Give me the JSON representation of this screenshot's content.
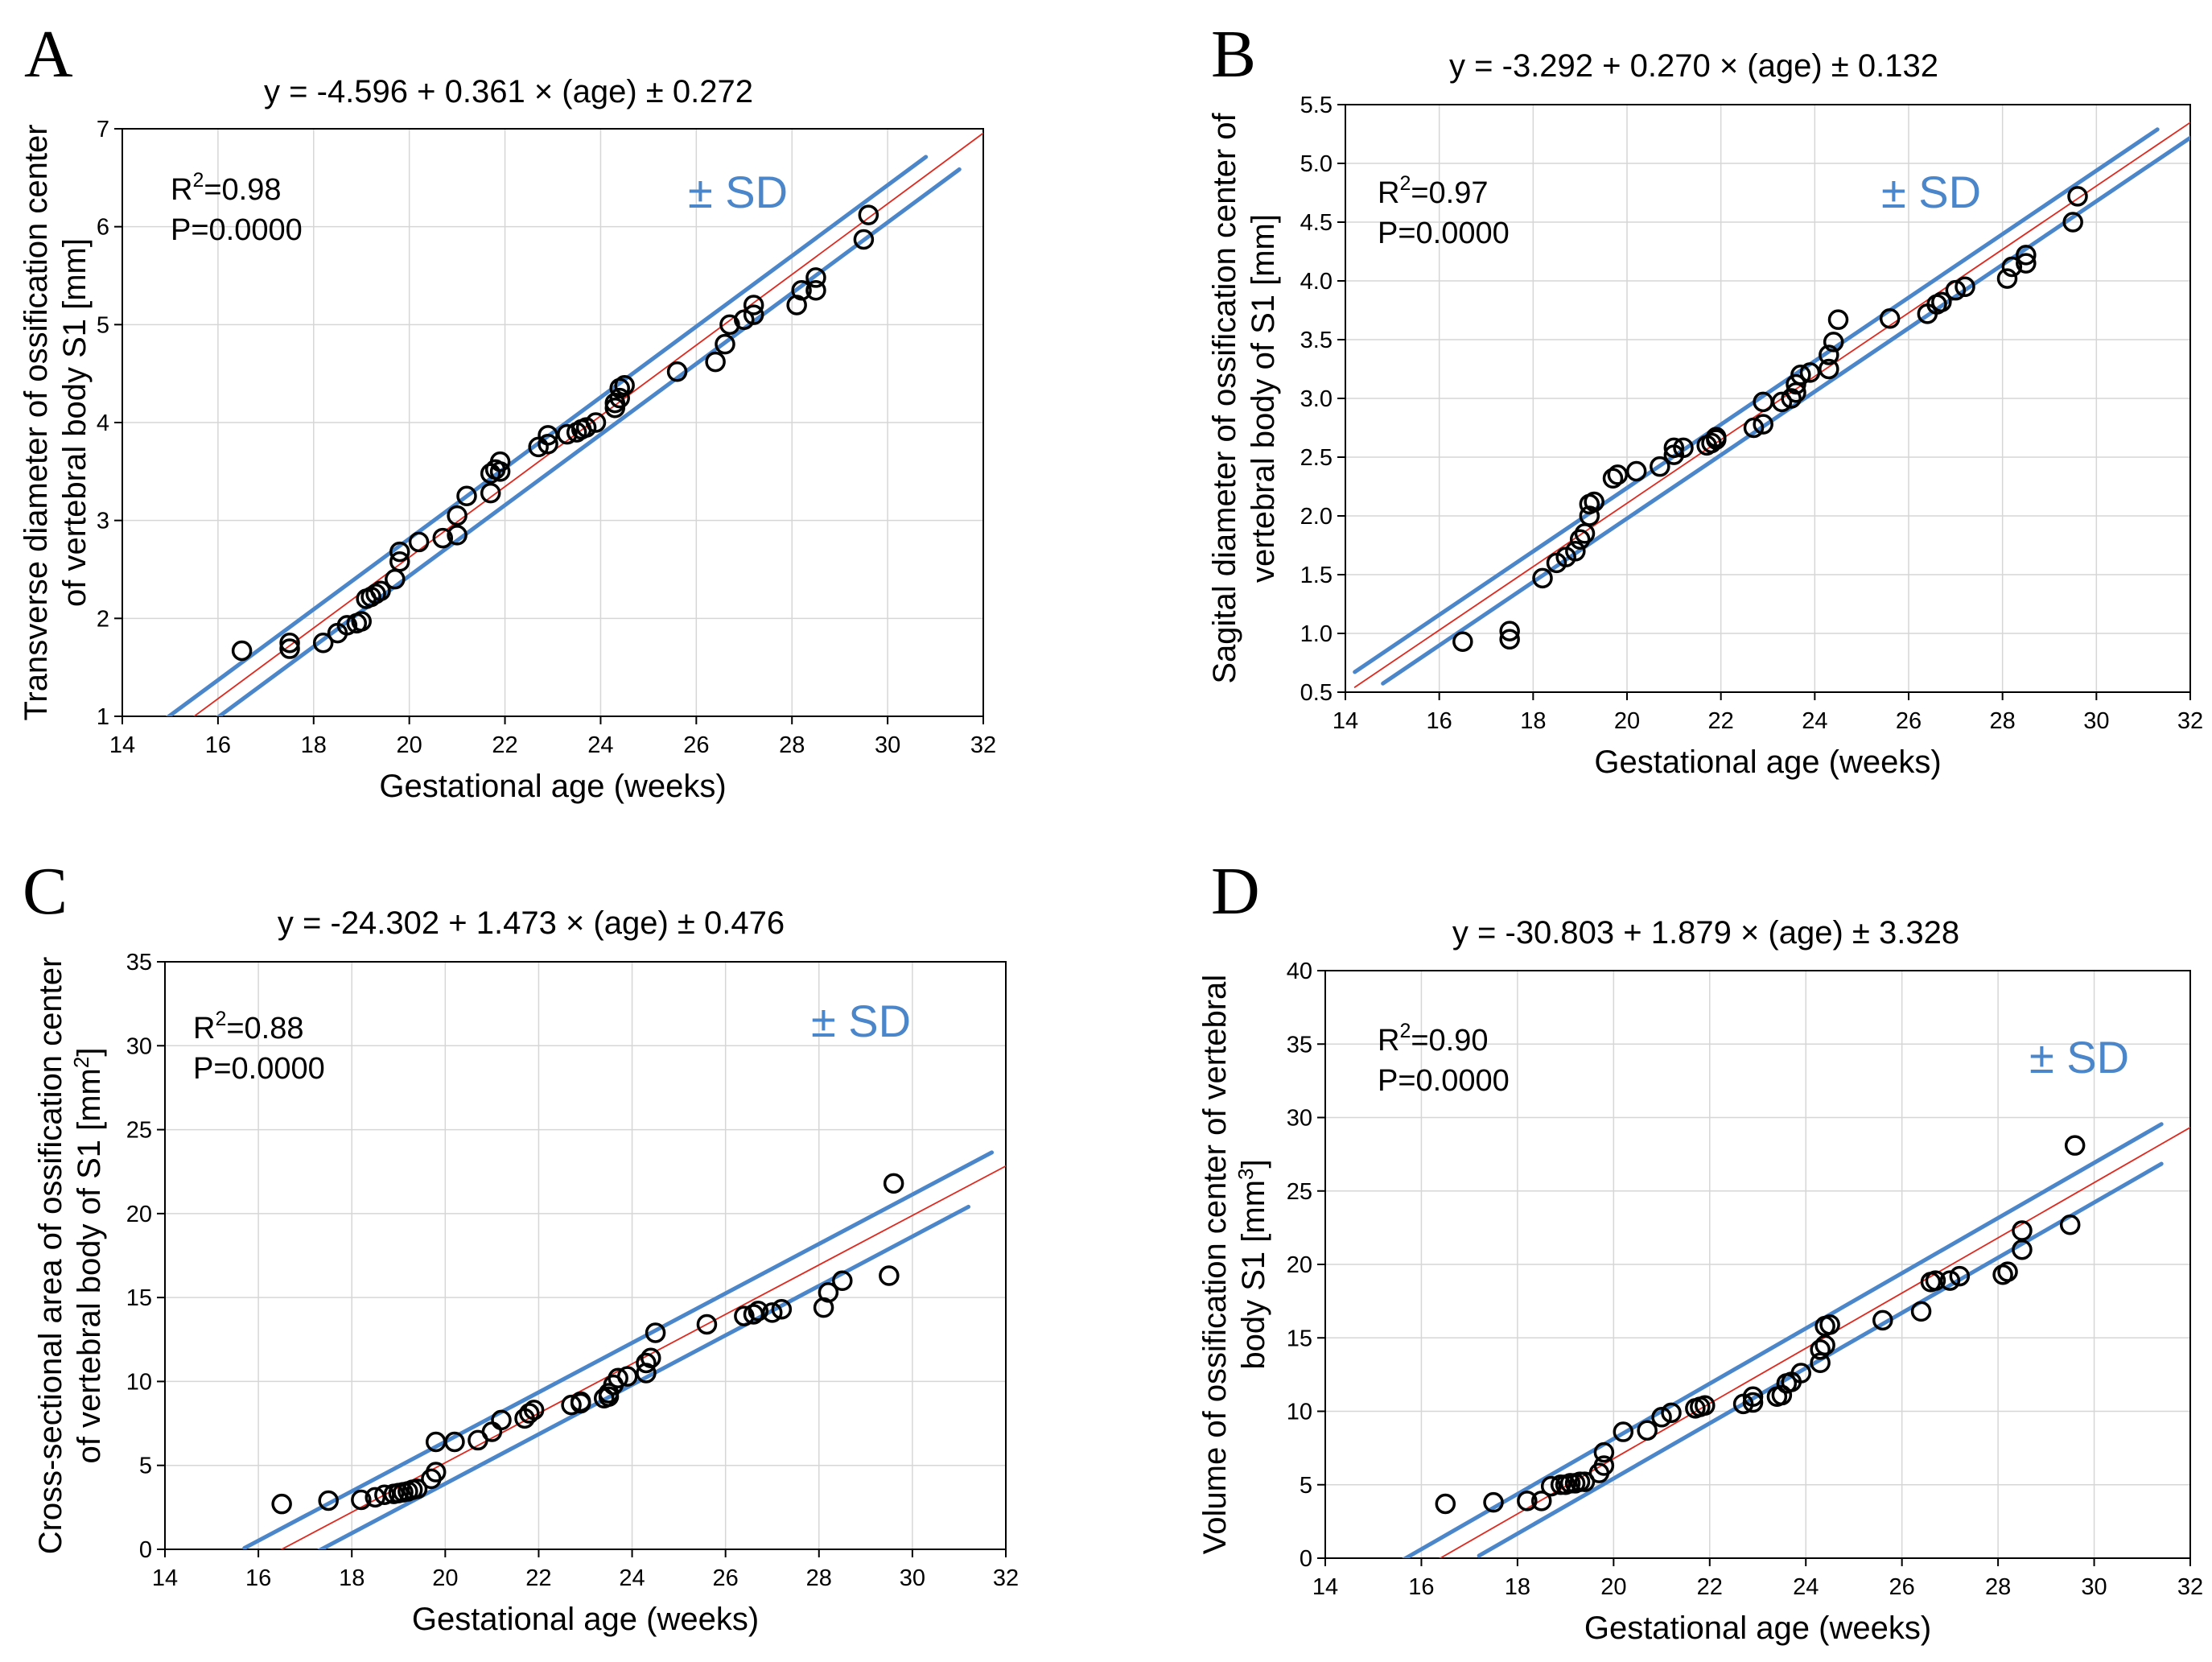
{
  "colors": {
    "sd_line": "#4a86c9",
    "fit_line": "#e0281e",
    "points": "#000000",
    "grid": "#d6d6d6",
    "sd_label": "#4a86c9"
  },
  "chart_data": [
    {
      "type": "scatter",
      "letter": "A",
      "title": "y = -4.596 + 0.361 × (age) ± 0.272",
      "xlabel": "Gestational age (weeks)",
      "ylabel_lines": [
        "Transverse diameter of ossification center",
        "of vertebral body S1 [mm]"
      ],
      "xlim": [
        14,
        32
      ],
      "ylim": [
        1,
        7
      ],
      "xticks": [
        "14",
        "16",
        "18",
        "20",
        "22",
        "24",
        "26",
        "28",
        "30",
        "32"
      ],
      "yticks": [
        "1",
        "2",
        "3",
        "4",
        "5",
        "6",
        "7"
      ],
      "r2_label": "R",
      "r2_sup": "2",
      "r2_value": "=0.98",
      "p_label": "P=0.0000",
      "sd_label": "± SD",
      "fit": {
        "intercept": -4.596,
        "slope": 0.361,
        "sd": 0.272
      },
      "fit_range": [
        15.5,
        32
      ],
      "upper_range": [
        14.9,
        30.8
      ],
      "lower_range": [
        15.75,
        31.5
      ],
      "points": [
        [
          16.5,
          1.67
        ],
        [
          17.5,
          1.69
        ],
        [
          17.5,
          1.75
        ],
        [
          18.2,
          1.75
        ],
        [
          18.5,
          1.85
        ],
        [
          18.7,
          1.93
        ],
        [
          18.9,
          1.95
        ],
        [
          19.0,
          1.97
        ],
        [
          19.1,
          2.2
        ],
        [
          19.2,
          2.22
        ],
        [
          19.3,
          2.25
        ],
        [
          19.4,
          2.28
        ],
        [
          19.7,
          2.4
        ],
        [
          19.8,
          2.58
        ],
        [
          19.8,
          2.68
        ],
        [
          20.2,
          2.78
        ],
        [
          20.7,
          2.82
        ],
        [
          21.0,
          2.85
        ],
        [
          21.0,
          3.05
        ],
        [
          21.2,
          3.25
        ],
        [
          21.7,
          3.28
        ],
        [
          21.7,
          3.48
        ],
        [
          21.8,
          3.52
        ],
        [
          21.9,
          3.5
        ],
        [
          21.9,
          3.6
        ],
        [
          22.7,
          3.75
        ],
        [
          22.9,
          3.78
        ],
        [
          22.9,
          3.87
        ],
        [
          23.3,
          3.88
        ],
        [
          23.5,
          3.9
        ],
        [
          23.6,
          3.93
        ],
        [
          23.7,
          3.95
        ],
        [
          23.9,
          4.0
        ],
        [
          24.3,
          4.15
        ],
        [
          24.3,
          4.2
        ],
        [
          24.4,
          4.25
        ],
        [
          24.4,
          4.35
        ],
        [
          24.5,
          4.38
        ],
        [
          25.6,
          4.52
        ],
        [
          26.4,
          4.62
        ],
        [
          26.6,
          4.8
        ],
        [
          26.7,
          5.0
        ],
        [
          27.0,
          5.05
        ],
        [
          27.2,
          5.1
        ],
        [
          27.2,
          5.2
        ],
        [
          28.1,
          5.2
        ],
        [
          28.2,
          5.35
        ],
        [
          28.5,
          5.35
        ],
        [
          28.5,
          5.48
        ],
        [
          29.5,
          5.87
        ],
        [
          29.6,
          6.12
        ]
      ]
    },
    {
      "type": "scatter",
      "letter": "B",
      "title": "y = -3.292 + 0.270 × (age) ± 0.132",
      "xlabel": "Gestational age (weeks)",
      "ylabel_lines": [
        "Sagital diameter of ossification center of",
        "vertebral body of S1 [mm]"
      ],
      "xlim": [
        14,
        32
      ],
      "ylim": [
        0.5,
        5.5
      ],
      "xticks": [
        "14",
        "16",
        "18",
        "20",
        "22",
        "24",
        "26",
        "28",
        "30",
        "32"
      ],
      "yticks": [
        "0.5",
        "1.0",
        "1.5",
        "2.0",
        "2.5",
        "3.0",
        "3.5",
        "4.0",
        "4.5",
        "5.0",
        "5.5"
      ],
      "r2_label": "R",
      "r2_sup": "2",
      "r2_value": "=0.97",
      "p_label": "P=0.0000",
      "sd_label": "± SD",
      "fit": {
        "intercept": -3.292,
        "slope": 0.27,
        "sd": 0.132
      },
      "fit_range": [
        14.2,
        32
      ],
      "upper_range": [
        14.2,
        31.3
      ],
      "lower_range": [
        14.8,
        32
      ],
      "points": [
        [
          16.5,
          0.93
        ],
        [
          17.5,
          0.95
        ],
        [
          17.5,
          1.02
        ],
        [
          18.2,
          1.47
        ],
        [
          18.5,
          1.6
        ],
        [
          18.7,
          1.65
        ],
        [
          18.9,
          1.7
        ],
        [
          19.0,
          1.8
        ],
        [
          19.1,
          1.85
        ],
        [
          19.2,
          2.0
        ],
        [
          19.2,
          2.1
        ],
        [
          19.3,
          2.12
        ],
        [
          19.7,
          2.32
        ],
        [
          19.8,
          2.35
        ],
        [
          20.2,
          2.38
        ],
        [
          20.7,
          2.42
        ],
        [
          21.0,
          2.52
        ],
        [
          21.0,
          2.58
        ],
        [
          21.2,
          2.58
        ],
        [
          21.7,
          2.6
        ],
        [
          21.8,
          2.62
        ],
        [
          21.9,
          2.65
        ],
        [
          21.9,
          2.67
        ],
        [
          22.7,
          2.75
        ],
        [
          22.9,
          2.78
        ],
        [
          22.9,
          2.97
        ],
        [
          23.3,
          2.97
        ],
        [
          23.5,
          3.0
        ],
        [
          23.6,
          3.05
        ],
        [
          23.6,
          3.12
        ],
        [
          23.7,
          3.2
        ],
        [
          23.9,
          3.22
        ],
        [
          24.3,
          3.25
        ],
        [
          24.3,
          3.37
        ],
        [
          24.4,
          3.48
        ],
        [
          24.5,
          3.67
        ],
        [
          25.6,
          3.68
        ],
        [
          26.4,
          3.72
        ],
        [
          26.6,
          3.8
        ],
        [
          26.7,
          3.82
        ],
        [
          27.0,
          3.92
        ],
        [
          27.2,
          3.95
        ],
        [
          28.1,
          4.02
        ],
        [
          28.2,
          4.12
        ],
        [
          28.5,
          4.15
        ],
        [
          28.5,
          4.22
        ],
        [
          29.5,
          4.5
        ],
        [
          29.6,
          4.72
        ]
      ]
    },
    {
      "type": "scatter",
      "letter": "C",
      "title": "y = -24.302 + 1.473 × (age) ± 0.476",
      "xlabel": "Gestational age (weeks)",
      "ylabel_lines": [
        "Cross-sectional area of ossification center",
        "of vertebral body of S1 [mm"
      ],
      "ylabel_sup": "2",
      "ylabel_tail": "]",
      "xlim": [
        14,
        32
      ],
      "ylim": [
        0,
        35
      ],
      "xticks": [
        "14",
        "16",
        "18",
        "20",
        "22",
        "24",
        "26",
        "28",
        "30",
        "32"
      ],
      "yticks": [
        "0",
        "5",
        "10",
        "15",
        "20",
        "25",
        "30",
        "35"
      ],
      "r2_label": "R",
      "r2_sup": "2",
      "r2_value": "=0.88",
      "p_label": "P=0.0000",
      "sd_label": "± SD",
      "fit": {
        "intercept": -24.302,
        "slope": 1.473,
        "sd": 0.476
      },
      "fit_range": [
        16.2,
        32
      ],
      "upper_range": [
        15.7,
        31.7
      ],
      "lower_range": [
        16.8,
        31.2
      ],
      "points": [
        [
          16.5,
          2.7
        ],
        [
          17.5,
          2.9
        ],
        [
          18.2,
          2.95
        ],
        [
          18.5,
          3.1
        ],
        [
          18.7,
          3.25
        ],
        [
          18.9,
          3.3
        ],
        [
          19.0,
          3.35
        ],
        [
          19.1,
          3.4
        ],
        [
          19.2,
          3.45
        ],
        [
          19.3,
          3.55
        ],
        [
          19.4,
          3.6
        ],
        [
          19.7,
          4.2
        ],
        [
          19.8,
          4.6
        ],
        [
          19.8,
          6.4
        ],
        [
          20.2,
          6.4
        ],
        [
          20.7,
          6.5
        ],
        [
          21.0,
          7.0
        ],
        [
          21.2,
          7.7
        ],
        [
          21.7,
          7.8
        ],
        [
          21.8,
          8.1
        ],
        [
          21.9,
          8.3
        ],
        [
          22.7,
          8.6
        ],
        [
          22.9,
          8.7
        ],
        [
          22.9,
          8.8
        ],
        [
          23.4,
          9.0
        ],
        [
          23.5,
          9.1
        ],
        [
          23.5,
          9.3
        ],
        [
          23.6,
          9.8
        ],
        [
          23.7,
          10.2
        ],
        [
          23.9,
          10.3
        ],
        [
          24.3,
          10.5
        ],
        [
          24.3,
          11.1
        ],
        [
          24.4,
          11.4
        ],
        [
          24.5,
          12.9
        ],
        [
          25.6,
          13.4
        ],
        [
          26.4,
          13.9
        ],
        [
          26.6,
          14.0
        ],
        [
          26.7,
          14.2
        ],
        [
          27.0,
          14.1
        ],
        [
          27.2,
          14.3
        ],
        [
          28.1,
          14.4
        ],
        [
          28.2,
          15.3
        ],
        [
          28.5,
          16.0
        ],
        [
          29.5,
          16.3
        ],
        [
          29.6,
          21.8
        ]
      ]
    },
    {
      "type": "scatter",
      "letter": "D",
      "title": "y = -30.803 + 1.879 × (age) ± 3.328",
      "xlabel": "Gestational age (weeks)",
      "ylabel_lines": [
        "Volume of ossification center of vertebral",
        "body S1 [mm"
      ],
      "ylabel_sup": "3",
      "ylabel_tail": "]",
      "xlim": [
        14,
        32
      ],
      "ylim": [
        0,
        40
      ],
      "xticks": [
        "14",
        "16",
        "18",
        "20",
        "22",
        "24",
        "26",
        "28",
        "30",
        "32"
      ],
      "yticks": [
        "0",
        "5",
        "10",
        "15",
        "20",
        "25",
        "30",
        "35",
        "40"
      ],
      "r2_label": "R",
      "r2_sup": "2",
      "r2_value": "=0.90",
      "p_label": "P=0.0000",
      "sd_label": "± SD",
      "fit": {
        "intercept": -30.803,
        "slope": 1.879,
        "sd": 3.328
      },
      "fit_range": [
        16.2,
        32
      ],
      "upper_range": [
        15.6,
        31.4
      ],
      "lower_range": [
        17.2,
        31.4
      ],
      "points": [
        [
          16.5,
          3.7
        ],
        [
          17.5,
          3.8
        ],
        [
          18.2,
          3.9
        ],
        [
          18.5,
          3.9
        ],
        [
          18.7,
          4.9
        ],
        [
          18.9,
          5.0
        ],
        [
          19.0,
          5.0
        ],
        [
          19.1,
          5.1
        ],
        [
          19.2,
          5.1
        ],
        [
          19.3,
          5.2
        ],
        [
          19.4,
          5.2
        ],
        [
          19.7,
          5.8
        ],
        [
          19.8,
          6.3
        ],
        [
          19.8,
          7.2
        ],
        [
          20.2,
          8.6
        ],
        [
          20.7,
          8.7
        ],
        [
          21.0,
          9.6
        ],
        [
          21.2,
          9.9
        ],
        [
          21.7,
          10.2
        ],
        [
          21.8,
          10.3
        ],
        [
          21.9,
          10.4
        ],
        [
          22.7,
          10.5
        ],
        [
          22.9,
          10.6
        ],
        [
          22.9,
          11.0
        ],
        [
          23.4,
          11.0
        ],
        [
          23.5,
          11.1
        ],
        [
          23.6,
          11.9
        ],
        [
          23.7,
          12.0
        ],
        [
          23.9,
          12.6
        ],
        [
          24.3,
          13.3
        ],
        [
          24.3,
          14.2
        ],
        [
          24.4,
          14.5
        ],
        [
          24.4,
          15.8
        ],
        [
          24.5,
          15.9
        ],
        [
          25.6,
          16.2
        ],
        [
          26.4,
          16.8
        ],
        [
          26.6,
          18.8
        ],
        [
          26.7,
          18.9
        ],
        [
          27.0,
          18.9
        ],
        [
          27.2,
          19.2
        ],
        [
          28.1,
          19.3
        ],
        [
          28.2,
          19.5
        ],
        [
          28.5,
          21.0
        ],
        [
          28.5,
          22.3
        ],
        [
          29.5,
          22.7
        ],
        [
          29.6,
          28.1
        ]
      ]
    }
  ]
}
